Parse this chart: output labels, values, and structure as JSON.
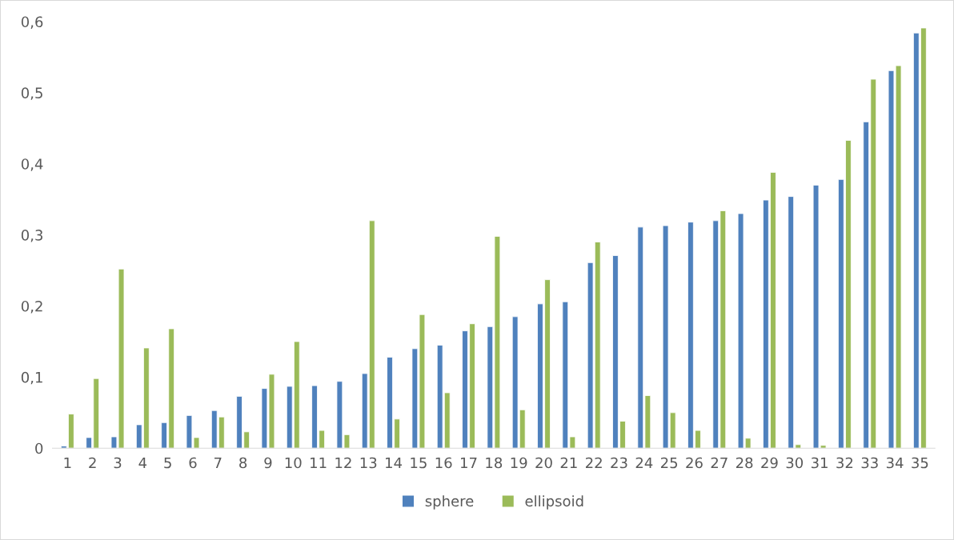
{
  "chart_data": {
    "type": "bar",
    "categories": [
      "1",
      "2",
      "3",
      "4",
      "5",
      "6",
      "7",
      "8",
      "9",
      "10",
      "11",
      "12",
      "13",
      "14",
      "15",
      "16",
      "17",
      "18",
      "19",
      "20",
      "21",
      "22",
      "23",
      "24",
      "25",
      "26",
      "27",
      "28",
      "29",
      "30",
      "31",
      "32",
      "33",
      "34",
      "35"
    ],
    "series": [
      {
        "name": "sphere",
        "color": "#4f81bd",
        "values": [
          0.003,
          0.015,
          0.016,
          0.033,
          0.036,
          0.046,
          0.053,
          0.073,
          0.084,
          0.087,
          0.088,
          0.094,
          0.105,
          0.128,
          0.14,
          0.145,
          0.165,
          0.171,
          0.185,
          0.203,
          0.206,
          0.261,
          0.271,
          0.311,
          0.313,
          0.318,
          0.32,
          0.33,
          0.349,
          0.354,
          0.37,
          0.378,
          0.459,
          0.531,
          0.584
        ]
      },
      {
        "name": "ellipsoid",
        "color": "#9bbb59",
        "values": [
          0.048,
          0.098,
          0.252,
          0.141,
          0.168,
          0.015,
          0.044,
          0.023,
          0.104,
          0.15,
          0.025,
          0.019,
          0.32,
          0.041,
          0.188,
          0.078,
          0.175,
          0.298,
          0.054,
          0.237,
          0.016,
          0.29,
          0.038,
          0.074,
          0.05,
          0.025,
          0.334,
          0.014,
          0.388,
          0.005,
          0.004,
          0.433,
          0.519,
          0.538,
          0.591
        ]
      }
    ],
    "ylim": [
      0,
      0.6
    ],
    "yticks": [
      {
        "value": 0,
        "label": "0"
      },
      {
        "value": 0.1,
        "label": "0,1"
      },
      {
        "value": 0.2,
        "label": "0,2"
      },
      {
        "value": 0.3,
        "label": "0,3"
      },
      {
        "value": 0.4,
        "label": "0,4"
      },
      {
        "value": 0.5,
        "label": "0,5"
      },
      {
        "value": 0.6,
        "label": "0,6"
      }
    ],
    "grid": false,
    "legend": "bottom"
  }
}
